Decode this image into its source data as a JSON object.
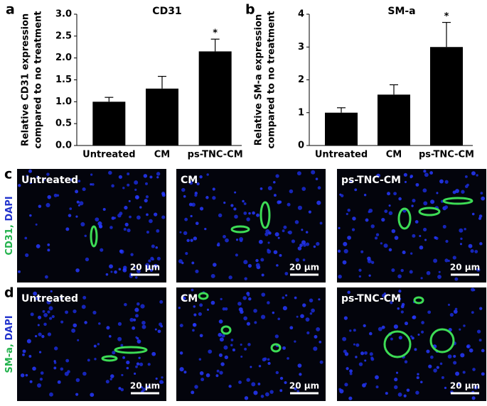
{
  "chart_data": [
    {
      "type": "bar",
      "panel": "a",
      "title": "CD31",
      "ylabel": [
        "Relative CD31 expression",
        "compared to no treatment"
      ],
      "categories": [
        "Untreated",
        "CM",
        "ps-TNC-CM"
      ],
      "values": [
        1.0,
        1.3,
        2.15
      ],
      "errors": [
        0.1,
        0.28,
        0.28
      ],
      "color": "#000000",
      "ylim": [
        0,
        3
      ],
      "yticks": [
        {
          "value": 0,
          "label": "0.0"
        },
        {
          "value": 0.5,
          "label": "0.5"
        },
        {
          "value": 1,
          "label": "1.0"
        },
        {
          "value": 1.5,
          "label": "1.5"
        },
        {
          "value": 2,
          "label": "2.0"
        },
        {
          "value": 2.5,
          "label": "2.5"
        },
        {
          "value": 3,
          "label": "3.0"
        }
      ],
      "annotations": [
        {
          "text": "*",
          "category": "ps-TNC-CM"
        }
      ]
    },
    {
      "type": "bar",
      "panel": "b",
      "title": "SM-a",
      "ylabel": [
        "Relative SM-a expression",
        "compared to no treatment"
      ],
      "categories": [
        "Untreated",
        "CM",
        "ps-TNC-CM"
      ],
      "values": [
        1.0,
        1.55,
        3.0
      ],
      "errors": [
        0.15,
        0.3,
        0.75
      ],
      "color": "#000000",
      "ylim": [
        0,
        4
      ],
      "yticks": [
        0,
        1,
        2,
        3,
        4
      ],
      "annotations": [
        {
          "text": "*",
          "category": "ps-TNC-CM"
        }
      ]
    }
  ],
  "image_panels": {
    "rows": [
      {
        "panel": "c",
        "stain": {
          "marker": "CD31",
          "separator": ", ",
          "counterstain": "DAPI"
        },
        "titles": [
          "Untreated",
          "CM",
          "ps-TNC-CM"
        ]
      },
      {
        "panel": "d",
        "stain": {
          "marker": "SM-a",
          "separator": ", ",
          "counterstain": "DAPI"
        },
        "titles": [
          "Untreated",
          "CM",
          "ps-TNC-CM"
        ]
      }
    ],
    "scale_bar": "20 μm"
  }
}
